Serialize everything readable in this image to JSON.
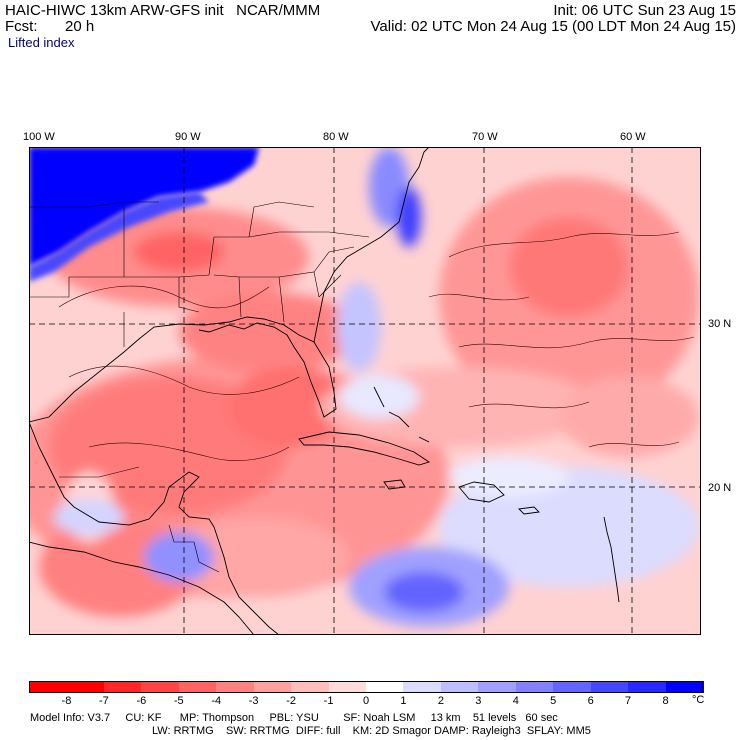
{
  "header": {
    "model_line": "HAIC-HIWC 13km ARW-GFS init   NCAR/MMM",
    "fcst_label": "Fcst:",
    "fcst_value": "20 h",
    "init_line": "Init: 06 UTC Sun 23 Aug 15",
    "valid_line": "Valid: 02 UTC Mon 24 Aug 15 (00 LDT Mon 24 Aug 15)",
    "field_name": "Lifted index"
  },
  "axes": {
    "lon_labels": [
      "100 W",
      "90 W",
      "80 W",
      "70 W",
      "60 W"
    ],
    "lat_labels": [
      "30 N",
      "20 N"
    ]
  },
  "colorbar": {
    "ticks": [
      "-8",
      "-7",
      "-6",
      "-5",
      "-4",
      "-3",
      "-2",
      "-1",
      "0",
      "1",
      "2",
      "3",
      "4",
      "5",
      "6",
      "7",
      "8"
    ],
    "unit": "°C",
    "colors": [
      "#ff0000",
      "#ff2828",
      "#ff4646",
      "#ff6464",
      "#ff8282",
      "#ffa0a0",
      "#ffbebe",
      "#ffdcdc",
      "#ffffff",
      "#dcdcff",
      "#bebeff",
      "#a0a0ff",
      "#8282ff",
      "#6464ff",
      "#4646ff",
      "#2828ff",
      "#0000ff"
    ]
  },
  "footer": {
    "line1": "Model Info: V3.7     CU: KF      MP: Thompson     PBL: YSU        SF: Noah LSM     13 km    51 levels   60 sec",
    "line2": "LW: RRTMG    SW: RRTMG  DIFF: full    KM: 2D Smagor DAMP: Rayleigh3  SFLAY: MM5"
  }
}
